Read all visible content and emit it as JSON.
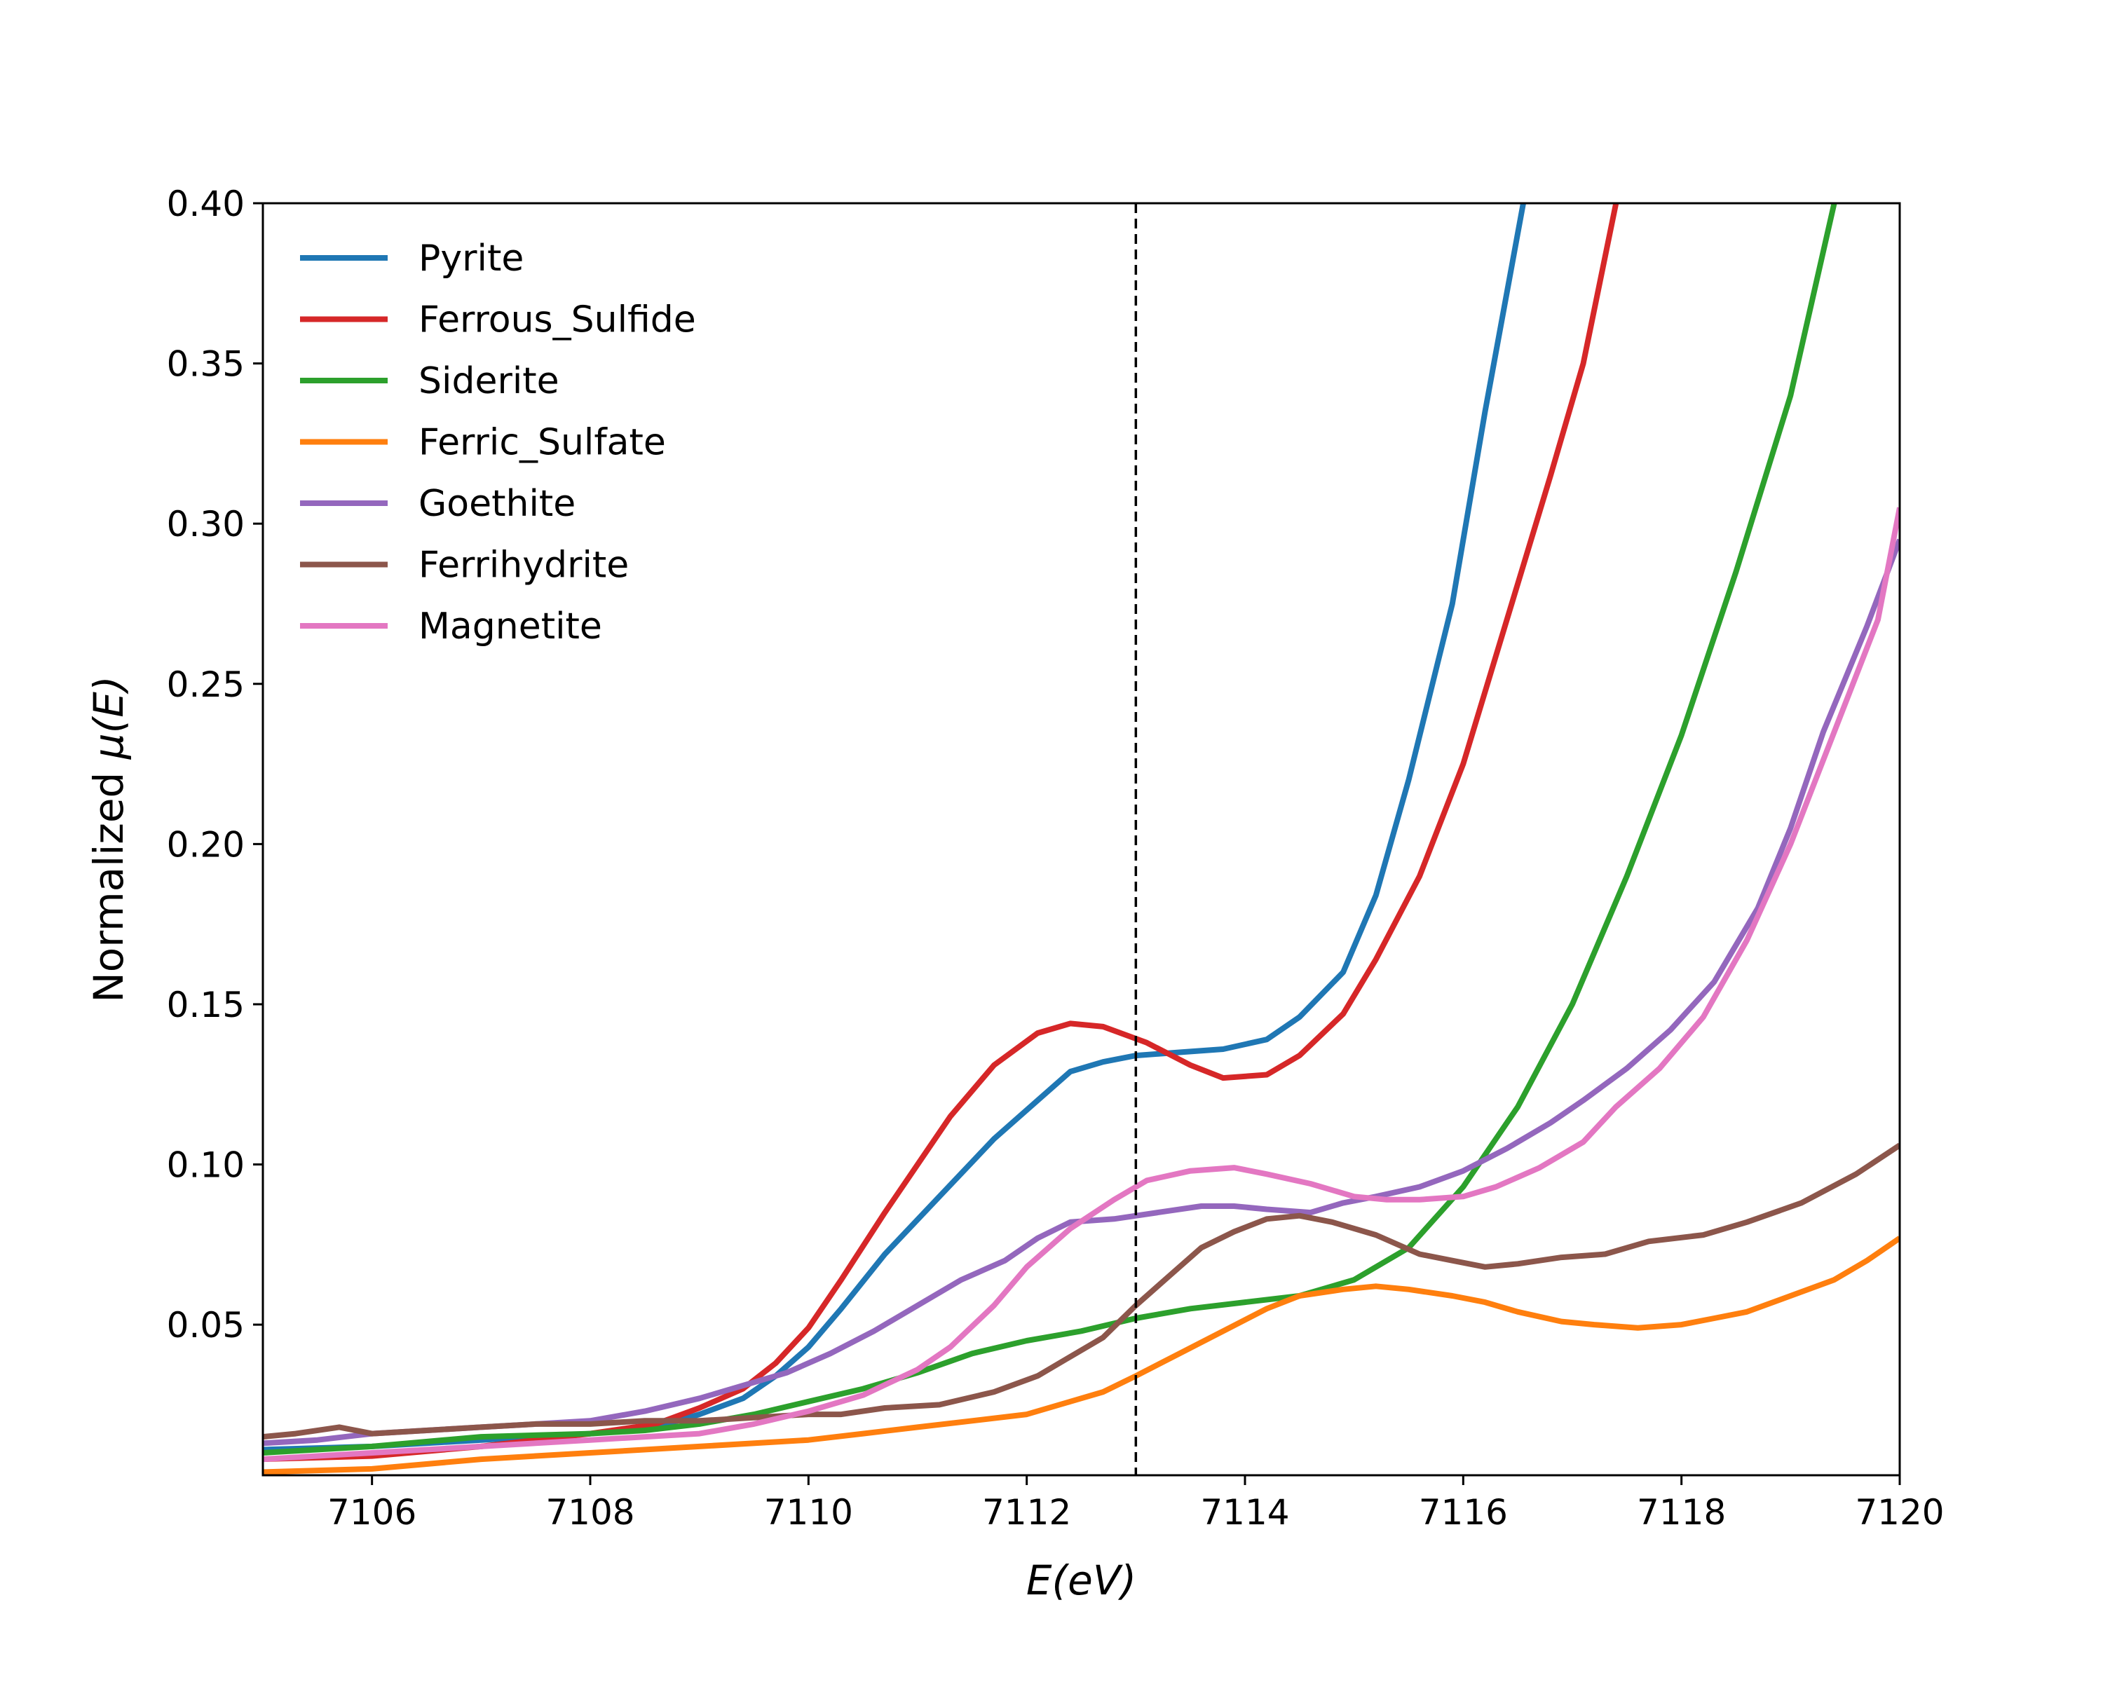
{
  "chart_data": {
    "type": "line",
    "xlabel_main": "E",
    "xlabel_unit": "(eV)",
    "ylabel_prefix": "Normalized ",
    "ylabel_mu": "μ",
    "ylabel_suffix": "(E)",
    "xlim": [
      7105,
      7120
    ],
    "ylim": [
      0.003,
      0.4
    ],
    "xticks": [
      7106,
      7108,
      7110,
      7112,
      7114,
      7116,
      7118,
      7120
    ],
    "xtick_labels": [
      "7106",
      "7108",
      "7110",
      "7112",
      "7114",
      "7116",
      "7118",
      "7120"
    ],
    "yticks": [
      0.05,
      0.1,
      0.15,
      0.2,
      0.25,
      0.3,
      0.35,
      0.4
    ],
    "ytick_labels": [
      "0.05",
      "0.10",
      "0.15",
      "0.20",
      "0.25",
      "0.30",
      "0.35",
      "0.40"
    ],
    "vline_x": 7113,
    "grid": false,
    "legend_position": "top-left",
    "series": [
      {
        "name": "Pyrite",
        "color": "#1f77b4",
        "points": [
          [
            7105,
            0.011
          ],
          [
            7106,
            0.012
          ],
          [
            7107,
            0.014
          ],
          [
            7108,
            0.016
          ],
          [
            7108.6,
            0.018
          ],
          [
            7109,
            0.022
          ],
          [
            7109.4,
            0.027
          ],
          [
            7109.7,
            0.034
          ],
          [
            7110,
            0.043
          ],
          [
            7110.3,
            0.055
          ],
          [
            7110.7,
            0.072
          ],
          [
            7111.2,
            0.09
          ],
          [
            7111.7,
            0.108
          ],
          [
            7112.1,
            0.12
          ],
          [
            7112.4,
            0.129
          ],
          [
            7112.7,
            0.132
          ],
          [
            7113,
            0.134
          ],
          [
            7113.4,
            0.135
          ],
          [
            7113.8,
            0.136
          ],
          [
            7114.2,
            0.139
          ],
          [
            7114.5,
            0.146
          ],
          [
            7114.9,
            0.16
          ],
          [
            7115.2,
            0.184
          ],
          [
            7115.5,
            0.22
          ],
          [
            7115.9,
            0.275
          ],
          [
            7116.2,
            0.335
          ],
          [
            7116.55,
            0.4
          ]
        ]
      },
      {
        "name": "Ferrous_Sulfide",
        "color": "#d62728",
        "points": [
          [
            7105,
            0.008
          ],
          [
            7106,
            0.009
          ],
          [
            7107,
            0.012
          ],
          [
            7108,
            0.016
          ],
          [
            7108.6,
            0.019
          ],
          [
            7109,
            0.024
          ],
          [
            7109.4,
            0.03
          ],
          [
            7109.7,
            0.038
          ],
          [
            7110,
            0.049
          ],
          [
            7110.3,
            0.064
          ],
          [
            7110.7,
            0.085
          ],
          [
            7111.3,
            0.115
          ],
          [
            7111.7,
            0.131
          ],
          [
            7112.1,
            0.141
          ],
          [
            7112.4,
            0.144
          ],
          [
            7112.7,
            0.143
          ],
          [
            7113.1,
            0.138
          ],
          [
            7113.5,
            0.131
          ],
          [
            7113.8,
            0.127
          ],
          [
            7114.2,
            0.128
          ],
          [
            7114.5,
            0.134
          ],
          [
            7114.9,
            0.147
          ],
          [
            7115.2,
            0.164
          ],
          [
            7115.6,
            0.19
          ],
          [
            7116,
            0.225
          ],
          [
            7116.4,
            0.27
          ],
          [
            7116.8,
            0.315
          ],
          [
            7117.1,
            0.35
          ],
          [
            7117.4,
            0.4
          ]
        ]
      },
      {
        "name": "Siderite",
        "color": "#2ca02c",
        "points": [
          [
            7105,
            0.01
          ],
          [
            7106,
            0.012
          ],
          [
            7107,
            0.015
          ],
          [
            7108,
            0.016
          ],
          [
            7108.5,
            0.017
          ],
          [
            7109,
            0.019
          ],
          [
            7109.5,
            0.022
          ],
          [
            7110,
            0.026
          ],
          [
            7110.5,
            0.03
          ],
          [
            7111,
            0.035
          ],
          [
            7111.5,
            0.041
          ],
          [
            7112,
            0.045
          ],
          [
            7112.5,
            0.048
          ],
          [
            7113,
            0.052
          ],
          [
            7113.5,
            0.055
          ],
          [
            7114,
            0.057
          ],
          [
            7114.5,
            0.059
          ],
          [
            7115,
            0.064
          ],
          [
            7115.5,
            0.074
          ],
          [
            7116,
            0.093
          ],
          [
            7116.5,
            0.118
          ],
          [
            7117,
            0.15
          ],
          [
            7117.5,
            0.19
          ],
          [
            7118,
            0.234
          ],
          [
            7118.5,
            0.285
          ],
          [
            7119,
            0.34
          ],
          [
            7119.4,
            0.4
          ]
        ]
      },
      {
        "name": "Ferric_Sulfate",
        "color": "#ff7f0e",
        "points": [
          [
            7105,
            0.004
          ],
          [
            7106,
            0.005
          ],
          [
            7107,
            0.008
          ],
          [
            7108,
            0.01
          ],
          [
            7109,
            0.012
          ],
          [
            7110,
            0.014
          ],
          [
            7110.5,
            0.016
          ],
          [
            7111,
            0.018
          ],
          [
            7111.5,
            0.02
          ],
          [
            7112,
            0.022
          ],
          [
            7112.4,
            0.026
          ],
          [
            7112.7,
            0.029
          ],
          [
            7113,
            0.034
          ],
          [
            7113.4,
            0.041
          ],
          [
            7113.8,
            0.048
          ],
          [
            7114.2,
            0.055
          ],
          [
            7114.5,
            0.059
          ],
          [
            7114.9,
            0.061
          ],
          [
            7115.2,
            0.062
          ],
          [
            7115.5,
            0.061
          ],
          [
            7115.9,
            0.059
          ],
          [
            7116.2,
            0.057
          ],
          [
            7116.5,
            0.054
          ],
          [
            7116.9,
            0.051
          ],
          [
            7117.2,
            0.05
          ],
          [
            7117.6,
            0.049
          ],
          [
            7118,
            0.05
          ],
          [
            7118.3,
            0.052
          ],
          [
            7118.6,
            0.054
          ],
          [
            7119,
            0.059
          ],
          [
            7119.4,
            0.064
          ],
          [
            7119.7,
            0.07
          ],
          [
            7120,
            0.077
          ]
        ]
      },
      {
        "name": "Goethite",
        "color": "#9467bd",
        "points": [
          [
            7105,
            0.013
          ],
          [
            7105.5,
            0.014
          ],
          [
            7106,
            0.016
          ],
          [
            7106.5,
            0.017
          ],
          [
            7107,
            0.018
          ],
          [
            7107.5,
            0.019
          ],
          [
            7108,
            0.02
          ],
          [
            7108.5,
            0.023
          ],
          [
            7109,
            0.027
          ],
          [
            7109.4,
            0.031
          ],
          [
            7109.8,
            0.035
          ],
          [
            7110.2,
            0.041
          ],
          [
            7110.6,
            0.048
          ],
          [
            7111,
            0.056
          ],
          [
            7111.4,
            0.064
          ],
          [
            7111.8,
            0.07
          ],
          [
            7112.1,
            0.077
          ],
          [
            7112.4,
            0.082
          ],
          [
            7112.8,
            0.083
          ],
          [
            7113.2,
            0.085
          ],
          [
            7113.6,
            0.087
          ],
          [
            7113.9,
            0.087
          ],
          [
            7114.2,
            0.086
          ],
          [
            7114.6,
            0.085
          ],
          [
            7114.9,
            0.088
          ],
          [
            7115.2,
            0.09
          ],
          [
            7115.6,
            0.093
          ],
          [
            7116,
            0.098
          ],
          [
            7116.4,
            0.105
          ],
          [
            7116.8,
            0.113
          ],
          [
            7117.1,
            0.12
          ],
          [
            7117.5,
            0.13
          ],
          [
            7117.9,
            0.142
          ],
          [
            7118.3,
            0.157
          ],
          [
            7118.7,
            0.18
          ],
          [
            7119,
            0.205
          ],
          [
            7119.3,
            0.235
          ],
          [
            7119.7,
            0.268
          ],
          [
            7120,
            0.295
          ]
        ]
      },
      {
        "name": "Ferrihydrite",
        "color": "#8c564b",
        "points": [
          [
            7105,
            0.015
          ],
          [
            7105.3,
            0.016
          ],
          [
            7105.7,
            0.018
          ],
          [
            7106,
            0.016
          ],
          [
            7106.5,
            0.017
          ],
          [
            7107,
            0.018
          ],
          [
            7107.5,
            0.019
          ],
          [
            7108,
            0.019
          ],
          [
            7108.5,
            0.02
          ],
          [
            7109,
            0.02
          ],
          [
            7109.5,
            0.021
          ],
          [
            7110,
            0.022
          ],
          [
            7110.3,
            0.022
          ],
          [
            7110.7,
            0.024
          ],
          [
            7111.2,
            0.025
          ],
          [
            7111.7,
            0.029
          ],
          [
            7112.1,
            0.034
          ],
          [
            7112.4,
            0.04
          ],
          [
            7112.7,
            0.046
          ],
          [
            7113,
            0.056
          ],
          [
            7113.3,
            0.065
          ],
          [
            7113.6,
            0.074
          ],
          [
            7113.9,
            0.079
          ],
          [
            7114.2,
            0.083
          ],
          [
            7114.5,
            0.084
          ],
          [
            7114.8,
            0.082
          ],
          [
            7115.2,
            0.078
          ],
          [
            7115.6,
            0.072
          ],
          [
            7115.9,
            0.07
          ],
          [
            7116.2,
            0.068
          ],
          [
            7116.5,
            0.069
          ],
          [
            7116.9,
            0.071
          ],
          [
            7117.3,
            0.072
          ],
          [
            7117.7,
            0.076
          ],
          [
            7118.2,
            0.078
          ],
          [
            7118.6,
            0.082
          ],
          [
            7119.1,
            0.088
          ],
          [
            7119.6,
            0.097
          ],
          [
            7120,
            0.106
          ]
        ]
      },
      {
        "name": "Magnetite",
        "color": "#e377c2",
        "points": [
          [
            7105,
            0.008
          ],
          [
            7106,
            0.01
          ],
          [
            7107,
            0.012
          ],
          [
            7108,
            0.014
          ],
          [
            7109,
            0.016
          ],
          [
            7109.5,
            0.019
          ],
          [
            7110,
            0.023
          ],
          [
            7110.5,
            0.028
          ],
          [
            7111,
            0.036
          ],
          [
            7111.3,
            0.043
          ],
          [
            7111.7,
            0.056
          ],
          [
            7112,
            0.068
          ],
          [
            7112.4,
            0.08
          ],
          [
            7112.8,
            0.089
          ],
          [
            7113.1,
            0.095
          ],
          [
            7113.5,
            0.098
          ],
          [
            7113.9,
            0.099
          ],
          [
            7114.2,
            0.097
          ],
          [
            7114.6,
            0.094
          ],
          [
            7115,
            0.09
          ],
          [
            7115.3,
            0.089
          ],
          [
            7115.6,
            0.089
          ],
          [
            7116,
            0.09
          ],
          [
            7116.3,
            0.093
          ],
          [
            7116.7,
            0.099
          ],
          [
            7117.1,
            0.107
          ],
          [
            7117.4,
            0.118
          ],
          [
            7117.8,
            0.13
          ],
          [
            7118.2,
            0.146
          ],
          [
            7118.6,
            0.17
          ],
          [
            7119,
            0.2
          ],
          [
            7119.4,
            0.235
          ],
          [
            7119.8,
            0.27
          ],
          [
            7120,
            0.305
          ]
        ]
      }
    ]
  }
}
